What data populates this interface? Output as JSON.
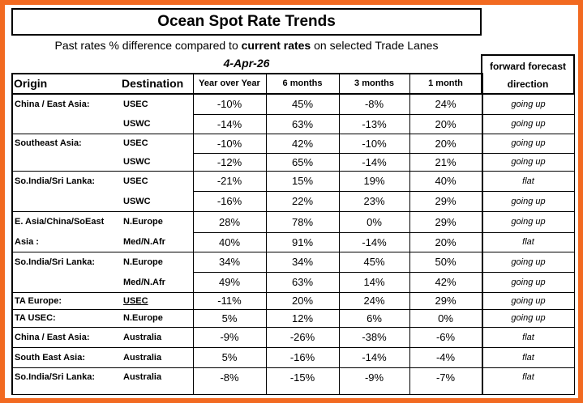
{
  "title": "Ocean Spot Rate Trends",
  "subtitle": {
    "pre": "Past rates % difference compared to ",
    "bold": "current rates",
    "post": " on selected Trade Lanes"
  },
  "date": "4-Apr-26",
  "forecast_header": {
    "line1": "forward forecast",
    "line2": "direction"
  },
  "columns": {
    "origin": "Origin",
    "destination": "Destination",
    "yoy": "Year over Year",
    "m6": "6 months",
    "m3": "3 months",
    "m1": "1 month"
  },
  "rows": [
    {
      "origin": "China / East Asia:",
      "dest": "USEC",
      "yoy": "-10%",
      "m6": "45%",
      "m3": "-8%",
      "m1": "24%",
      "forecast": "going up"
    },
    {
      "origin": "",
      "dest": "USWC",
      "yoy": "-14%",
      "m6": "63%",
      "m3": "-13%",
      "m1": "20%",
      "forecast": "going up"
    },
    {
      "origin": "Southeast Asia:",
      "dest": "USEC",
      "yoy": "-10%",
      "m6": "42%",
      "m3": "-10%",
      "m1": "20%",
      "forecast": "going up"
    },
    {
      "origin": "",
      "dest": "USWC",
      "yoy": "-12%",
      "m6": "65%",
      "m3": "-14%",
      "m1": "21%",
      "forecast": "going up"
    },
    {
      "origin": "So.India/Sri Lanka:",
      "dest": "USEC",
      "yoy": "-21%",
      "m6": "15%",
      "m3": "19%",
      "m1": "40%",
      "forecast": "flat"
    },
    {
      "origin": "",
      "dest": "USWC",
      "yoy": "-16%",
      "m6": "22%",
      "m3": "23%",
      "m1": "29%",
      "forecast": "going up"
    },
    {
      "origin": "E. Asia/China/SoEast",
      "dest": "N.Europe",
      "yoy": "28%",
      "m6": "78%",
      "m3": "0%",
      "m1": "29%",
      "forecast": "going up"
    },
    {
      "origin": "Asia :",
      "dest": "Med/N.Afr",
      "yoy": "40%",
      "m6": "91%",
      "m3": "-14%",
      "m1": "20%",
      "forecast": "flat"
    },
    {
      "origin": "So.India/Sri Lanka:",
      "dest": "N.Europe",
      "yoy": "34%",
      "m6": "34%",
      "m3": "45%",
      "m1": "50%",
      "forecast": "going up"
    },
    {
      "origin": "",
      "dest": "Med/N.Afr",
      "yoy": "49%",
      "m6": "63%",
      "m3": "14%",
      "m1": "42%",
      "forecast": "going up"
    },
    {
      "origin": "TA Europe:",
      "dest": "USEC",
      "yoy": "-11%",
      "m6": "20%",
      "m3": "24%",
      "m1": "29%",
      "forecast": "going up"
    },
    {
      "origin": "TA USEC:",
      "dest": "N.Europe",
      "yoy": "5%",
      "m6": "12%",
      "m3": "6%",
      "m1": "0%",
      "forecast": "going up"
    },
    {
      "origin": "China / East Asia:",
      "dest": "Australia",
      "yoy": "-9%",
      "m6": "-26%",
      "m3": "-38%",
      "m1": "-6%",
      "forecast": "flat"
    },
    {
      "origin": "South East Asia:",
      "dest": "Australia",
      "yoy": "5%",
      "m6": "-16%",
      "m3": "-14%",
      "m1": "-4%",
      "forecast": "flat"
    },
    {
      "origin": "So.India/Sri Lanka:",
      "dest": "Australia",
      "yoy": "-8%",
      "m6": "-15%",
      "m3": "-9%",
      "m1": "-7%",
      "forecast": "flat"
    }
  ]
}
